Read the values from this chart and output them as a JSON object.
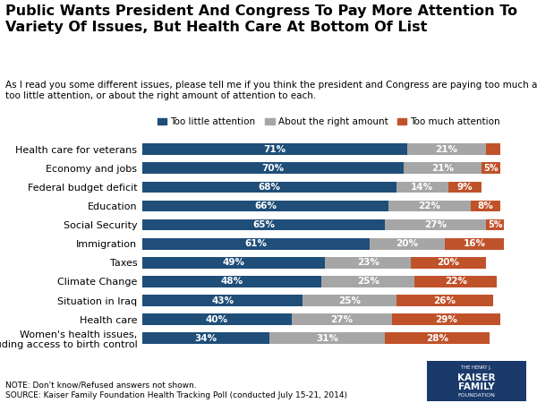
{
  "title": "Public Wants President And Congress To Pay More Attention To\nVariety Of Issues, But Health Care At Bottom Of List",
  "subtitle": "As I read you some different issues, please tell me if you think the president and Congress are paying too much attention,\ntoo little attention, or about the right amount of attention to each.",
  "note": "NOTE: Don't know/Refused answers not shown.\nSOURCE: Kaiser Family Foundation Health Tracking Poll (conducted July 15-21, 2014)",
  "legend_labels": [
    "Too little attention",
    "About the right amount",
    "Too much attention"
  ],
  "colors": [
    "#1f4e79",
    "#a6a6a6",
    "#c0522a"
  ],
  "categories": [
    "Health care for veterans",
    "Economy and jobs",
    "Federal budget deficit",
    "Education",
    "Social Security",
    "Immigration",
    "Taxes",
    "Climate Change",
    "Situation in Iraq",
    "Health care",
    "Women's health issues,\nIncluding access to birth control"
  ],
  "too_little": [
    71,
    70,
    68,
    66,
    65,
    61,
    49,
    48,
    43,
    40,
    34
  ],
  "right_amount": [
    21,
    21,
    14,
    22,
    27,
    20,
    23,
    25,
    25,
    27,
    31
  ],
  "too_much": [
    4,
    5,
    9,
    8,
    5,
    16,
    20,
    22,
    26,
    29,
    28
  ],
  "bar_height": 0.6,
  "xlim": [
    0,
    100
  ],
  "background_color": "#ffffff",
  "title_fontsize": 11.5,
  "subtitle_fontsize": 7.5,
  "label_fontsize": 7.5,
  "tick_fontsize": 8,
  "legend_fontsize": 7.5,
  "note_fontsize": 6.5
}
